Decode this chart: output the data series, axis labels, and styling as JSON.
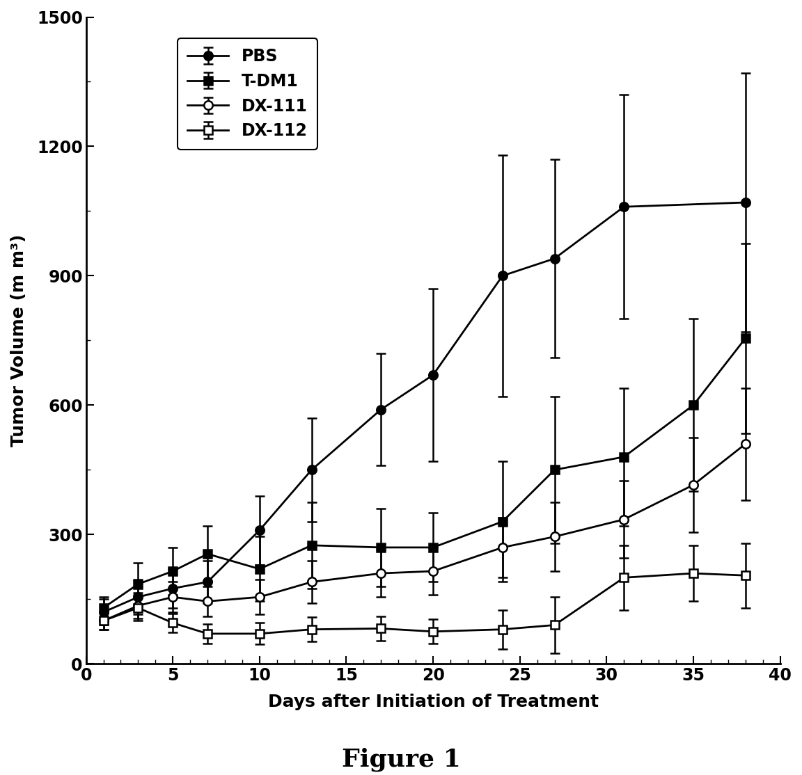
{
  "title": "Figure 1",
  "xlabel": "Days after Initiation of Treatment",
  "ylabel": "Tumor Volume (m m³)",
  "xlim": [
    0,
    40
  ],
  "ylim": [
    0,
    1500
  ],
  "yticks": [
    0,
    300,
    600,
    900,
    1200,
    1500
  ],
  "xticks": [
    0,
    5,
    10,
    15,
    20,
    25,
    30,
    35,
    40
  ],
  "background_color": "#ffffff",
  "series": [
    {
      "label": "PBS",
      "marker": "o",
      "fillstyle": "full",
      "color": "#000000",
      "linewidth": 2.0,
      "markersize": 9,
      "x": [
        1,
        3,
        5,
        7,
        10,
        13,
        17,
        20,
        24,
        27,
        31,
        38
      ],
      "y": [
        120,
        155,
        175,
        190,
        310,
        450,
        590,
        670,
        900,
        940,
        1060,
        1070
      ],
      "yerr_lo": [
        30,
        40,
        45,
        50,
        80,
        120,
        130,
        200,
        280,
        230,
        260,
        300
      ],
      "yerr_hi": [
        30,
        40,
        45,
        50,
        80,
        120,
        130,
        200,
        280,
        230,
        260,
        300
      ]
    },
    {
      "label": "T-DM1",
      "marker": "s",
      "fillstyle": "full",
      "color": "#000000",
      "linewidth": 2.0,
      "markersize": 9,
      "x": [
        1,
        3,
        5,
        7,
        10,
        13,
        17,
        20,
        24,
        27,
        31,
        35,
        38
      ],
      "y": [
        130,
        185,
        215,
        255,
        220,
        275,
        270,
        270,
        330,
        450,
        480,
        600,
        755
      ],
      "yerr_lo": [
        25,
        50,
        55,
        65,
        75,
        100,
        90,
        80,
        140,
        170,
        160,
        200,
        220
      ],
      "yerr_hi": [
        25,
        50,
        55,
        65,
        75,
        100,
        90,
        80,
        140,
        170,
        160,
        200,
        220
      ]
    },
    {
      "label": "DX-111",
      "marker": "o",
      "fillstyle": "none",
      "color": "#000000",
      "linewidth": 2.0,
      "markersize": 9,
      "x": [
        1,
        3,
        5,
        7,
        10,
        13,
        17,
        20,
        24,
        27,
        31,
        35,
        38
      ],
      "y": [
        100,
        135,
        155,
        145,
        155,
        190,
        210,
        215,
        270,
        295,
        335,
        415,
        510
      ],
      "yerr_lo": [
        20,
        30,
        35,
        35,
        40,
        50,
        55,
        55,
        70,
        80,
        90,
        110,
        130
      ],
      "yerr_hi": [
        20,
        30,
        35,
        35,
        40,
        50,
        55,
        55,
        70,
        80,
        90,
        110,
        130
      ]
    },
    {
      "label": "DX-112",
      "marker": "s",
      "fillstyle": "none",
      "color": "#000000",
      "linewidth": 2.0,
      "markersize": 9,
      "x": [
        1,
        3,
        5,
        7,
        10,
        13,
        17,
        20,
        24,
        27,
        31,
        35,
        38
      ],
      "y": [
        100,
        130,
        95,
        70,
        70,
        80,
        82,
        75,
        80,
        90,
        200,
        210,
        205
      ],
      "yerr_lo": [
        20,
        30,
        22,
        22,
        25,
        28,
        28,
        28,
        45,
        65,
        75,
        65,
        75
      ],
      "yerr_hi": [
        20,
        30,
        22,
        22,
        25,
        28,
        28,
        28,
        45,
        65,
        75,
        65,
        75
      ]
    }
  ],
  "legend_fontsize": 17,
  "label_fontsize": 18,
  "title_fontsize": 26,
  "tick_fontsize": 17
}
